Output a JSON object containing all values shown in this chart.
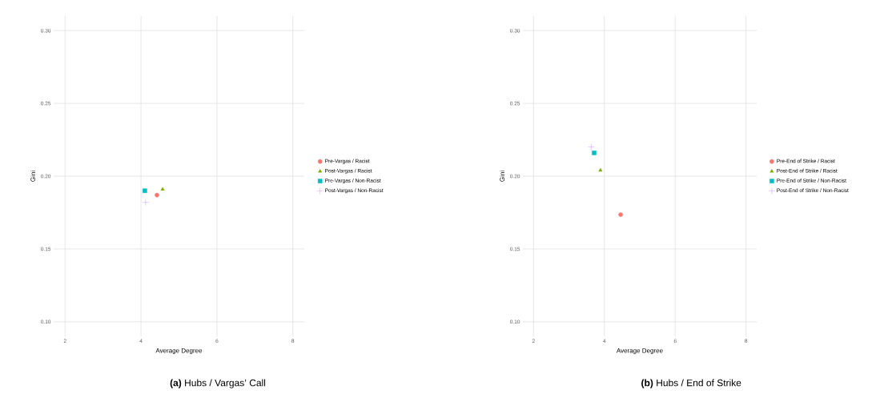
{
  "chart_data": [
    {
      "type": "scatter",
      "title": "**(a)** Hubs / Vargas’ Call",
      "xlabel": "Average Degree",
      "ylabel": "Gini",
      "xlim": [
        1.7,
        8.3
      ],
      "ylim": [
        0.09,
        0.31
      ],
      "xticks": [
        2,
        4,
        6,
        8
      ],
      "yticks": [
        {
          "value": 0.1,
          "label": "0.10"
        },
        {
          "value": 0.15,
          "label": "0.15"
        },
        {
          "value": 0.2,
          "label": "0.20"
        },
        {
          "value": 0.25,
          "label": "0.25"
        },
        {
          "value": 0.3,
          "label": "0.30"
        }
      ],
      "grid": true,
      "legend": "right",
      "series": [
        {
          "name": "Pre-Vargas / Racist",
          "color": "#f8766d",
          "marker": "circle",
          "x": [
            4.42
          ],
          "values": [
            0.187
          ]
        },
        {
          "name": "Post-Vargas / Racist",
          "color": "#7cae00",
          "marker": "triangle",
          "x": [
            4.57
          ],
          "values": [
            0.191
          ]
        },
        {
          "name": "Pre-Vargas / Non-Racist",
          "color": "#00bfc4",
          "marker": "square",
          "x": [
            4.1
          ],
          "values": [
            0.19
          ]
        },
        {
          "name": "Post-Vargas / Non-Racist",
          "color": "#c77cff",
          "marker": "cross",
          "x": [
            4.12
          ],
          "values": [
            0.182
          ]
        }
      ]
    },
    {
      "type": "scatter",
      "title": "**(b)** Hubs / End of Strike",
      "xlabel": "Average Degree",
      "ylabel": "Gini",
      "xlim": [
        1.7,
        8.3
      ],
      "ylim": [
        0.09,
        0.31
      ],
      "xticks": [
        2,
        4,
        6,
        8
      ],
      "yticks": [
        {
          "value": 0.1,
          "label": "0.10"
        },
        {
          "value": 0.15,
          "label": "0.15"
        },
        {
          "value": 0.2,
          "label": "0.20"
        },
        {
          "value": 0.25,
          "label": "0.25"
        },
        {
          "value": 0.3,
          "label": "0.30"
        }
      ],
      "grid": true,
      "legend": "right",
      "series": [
        {
          "name": "Pre-End of Strike / Racist",
          "color": "#f8766d",
          "marker": "circle",
          "x": [
            4.46
          ],
          "values": [
            0.1736
          ]
        },
        {
          "name": "Post-End of Strike / Racist",
          "color": "#7cae00",
          "marker": "triangle",
          "x": [
            3.89
          ],
          "values": [
            0.204
          ]
        },
        {
          "name": "Pre-End of Strike / Non-Racist",
          "color": "#00bfc4",
          "marker": "square",
          "x": [
            3.71
          ],
          "values": [
            0.216
          ]
        },
        {
          "name": "Post-End of Strike / Non-Racist",
          "color": "#c77cff",
          "marker": "cross",
          "x": [
            3.63
          ],
          "values": [
            0.22
          ]
        }
      ]
    }
  ]
}
